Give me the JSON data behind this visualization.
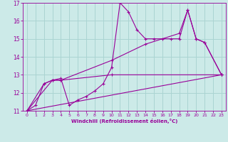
{
  "background_color": "#cceae8",
  "grid_color": "#aad4d2",
  "line_color": "#990099",
  "xlabel": "Windchill (Refroidissement éolien,°C)",
  "xlabel_color": "#990099",
  "tick_color": "#990099",
  "xlim": [
    -0.5,
    23.5
  ],
  "ylim": [
    11,
    17
  ],
  "xticks": [
    0,
    1,
    2,
    3,
    4,
    5,
    6,
    7,
    8,
    9,
    10,
    11,
    12,
    13,
    14,
    15,
    16,
    17,
    18,
    19,
    20,
    21,
    22,
    23
  ],
  "yticks": [
    11,
    12,
    13,
    14,
    15,
    16,
    17
  ],
  "series": [
    {
      "x": [
        0,
        1,
        2,
        3,
        4,
        5,
        6,
        7,
        8,
        9,
        10,
        11,
        12,
        13,
        14,
        15,
        16,
        17,
        18,
        19,
        20,
        21,
        23
      ],
      "y": [
        11.0,
        11.3,
        12.5,
        12.7,
        12.8,
        11.3,
        11.6,
        11.8,
        12.1,
        12.5,
        13.4,
        17.0,
        16.5,
        15.5,
        15.0,
        15.0,
        15.0,
        15.0,
        15.0,
        16.6,
        15.0,
        14.8,
        13.0
      ]
    },
    {
      "x": [
        0,
        2,
        3,
        4,
        10,
        23
      ],
      "y": [
        11.0,
        12.5,
        12.7,
        12.7,
        13.0,
        13.0
      ]
    },
    {
      "x": [
        0,
        3,
        4,
        10,
        14,
        18,
        19,
        20,
        21,
        23
      ],
      "y": [
        11.0,
        12.7,
        12.7,
        13.8,
        14.7,
        15.3,
        16.6,
        15.0,
        14.8,
        13.0
      ]
    },
    {
      "x": [
        0,
        23
      ],
      "y": [
        11.0,
        13.0
      ]
    }
  ]
}
